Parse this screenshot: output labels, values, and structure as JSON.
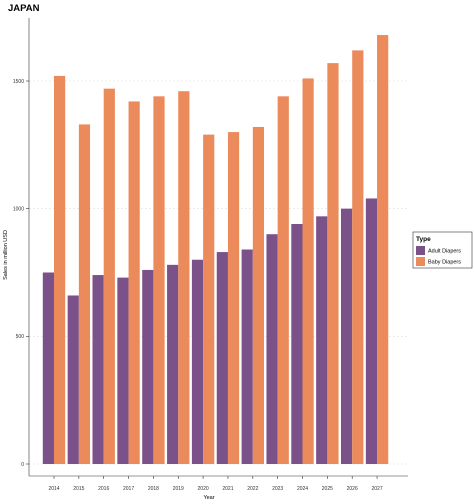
{
  "chart_data": {
    "type": "bar",
    "title": "JAPAN",
    "xlabel": "Year",
    "ylabel": "Sales in million USD",
    "categories": [
      "2014",
      "2015",
      "2016",
      "2017",
      "2018",
      "2019",
      "2020",
      "2021",
      "2022",
      "2023",
      "2024",
      "2025",
      "2026",
      "2027"
    ],
    "series": [
      {
        "name": "Adult Diapers",
        "color": "#7b5189",
        "values": [
          750,
          660,
          740,
          730,
          760,
          780,
          800,
          830,
          840,
          900,
          940,
          970,
          1000,
          1040
        ]
      },
      {
        "name": "Baby Diapers",
        "color": "#eb8a5b",
        "values": [
          1520,
          1330,
          1470,
          1420,
          1440,
          1460,
          1290,
          1300,
          1320,
          1440,
          1510,
          1570,
          1620,
          1680
        ]
      }
    ],
    "ylim": [
      0,
      1750
    ],
    "yticks": [
      0,
      500,
      1000,
      1500
    ],
    "grid": true,
    "legend": {
      "title": "Type",
      "position": "right"
    }
  }
}
